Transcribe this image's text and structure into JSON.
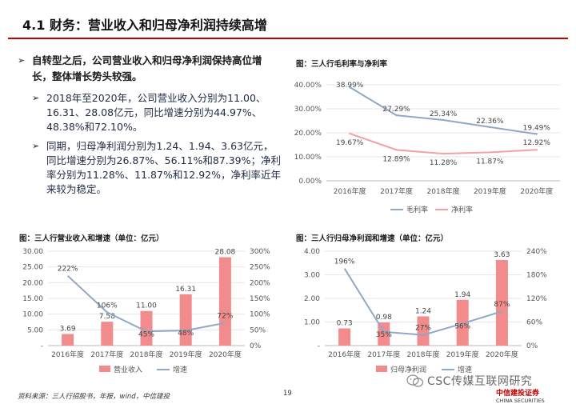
{
  "header": {
    "title": "4.1 财务：营业收入和归母净利润持续高增"
  },
  "lead_bullet": "自转型之后，公司营业收入和归母净利润保持高位增长，整体增长势头较强。",
  "sub_bullets": [
    "2018年至2020年，公司营业收入分别为11.00、16.31、28.08亿元，同比增速分别为44.97%、48.38%和72.10%。",
    "同期，归母净利润分别为1.24、1.94、3.63亿元，同比增速分别为26.87%、56.11%和87.39%；净利率分别为11.28%、11.87%和12.92%，净利率近年来较为稳定。"
  ],
  "chart_data": [
    {
      "type": "line",
      "title": "图：三人行毛利率与净利率",
      "categories": [
        "2016年度",
        "2017年度",
        "2018年度",
        "2019年度",
        "2020年度"
      ],
      "y_ticks": [
        "0.00%",
        "10.00%",
        "20.00%",
        "30.00%",
        "40.00%"
      ],
      "ylim": [
        0,
        40
      ],
      "series": [
        {
          "name": "毛利率",
          "color": "#8fa8c8",
          "values": [
            38.99,
            27.29,
            25.34,
            22.36,
            19.49
          ],
          "labels": [
            "38.99%",
            "27.29%",
            "25.34%",
            "22.36%",
            "19.49%"
          ]
        },
        {
          "name": "净利率",
          "color": "#f4a0a4",
          "values": [
            19.67,
            12.89,
            11.28,
            11.87,
            12.92
          ],
          "labels": [
            "19.67%",
            "12.89%",
            "11.28%",
            "11.87%",
            "12.92%"
          ]
        }
      ],
      "legend": "bottom"
    },
    {
      "type": "bar",
      "title": "图：三人行营业收入和增速（单位：亿元）",
      "categories": [
        "2016年度",
        "2017年度",
        "2018年度",
        "2019年度",
        "2020年度"
      ],
      "y_ticks": [
        "-",
        "5.00",
        "10.00",
        "15.00",
        "20.00",
        "25.00",
        "30.00"
      ],
      "y2_ticks": [
        "0%",
        "50%",
        "100%",
        "150%",
        "200%",
        "250%",
        "300%"
      ],
      "ylim": [
        0,
        30
      ],
      "y2lim": [
        0,
        300
      ],
      "series": [
        {
          "name": "营业收入",
          "color": "#f28b8b",
          "kind": "bar",
          "values": [
            3.69,
            7.58,
            11.0,
            16.31,
            28.08
          ],
          "labels": [
            "3.69",
            "7.58",
            "11.00",
            "16.31",
            "28.08"
          ]
        },
        {
          "name": "增速",
          "color": "#8fa8c8",
          "kind": "line",
          "axis": "right",
          "values": [
            222,
            106,
            45,
            48,
            72
          ],
          "labels": [
            "222%",
            "106%",
            "45%",
            "48%",
            "72%"
          ]
        }
      ],
      "legend": "bottom"
    },
    {
      "type": "bar",
      "title": "图：三人行归母净利润和增速（单位：亿元）",
      "categories": [
        "2016年度",
        "2017年度",
        "2018年度",
        "2019年度",
        "2020年度"
      ],
      "y_ticks": [
        "-",
        "1.00",
        "2.00",
        "3.00",
        "4.00"
      ],
      "y2_ticks": [
        "0%",
        "60%",
        "120%",
        "180%",
        "240%"
      ],
      "ylim": [
        0,
        4
      ],
      "y2lim": [
        0,
        240
      ],
      "series": [
        {
          "name": "归母净利润",
          "color": "#f28b8b",
          "kind": "bar",
          "values": [
            0.73,
            0.98,
            1.24,
            1.94,
            3.63
          ],
          "labels": [
            "0.73",
            "0.98",
            "1.24",
            "1.94",
            "3.63"
          ]
        },
        {
          "name": "增速",
          "color": "#8fa8c8",
          "kind": "line",
          "axis": "right",
          "values": [
            196,
            35,
            27,
            56,
            87
          ],
          "labels": [
            "196%",
            "35%",
            "27%",
            "56%",
            "87%"
          ]
        }
      ],
      "legend": "bottom"
    }
  ],
  "footer": {
    "source": "资料来源：三人行招股书，年报，wind，中信建投",
    "page": "19",
    "watermark": "CSC传媒互联网研究",
    "logo_cn": "中信建投证券",
    "logo_en": "CHINA SECURITIES"
  },
  "icons": {
    "bullet": "arrow-bullet-icon",
    "watermark": "wechat-icon"
  }
}
